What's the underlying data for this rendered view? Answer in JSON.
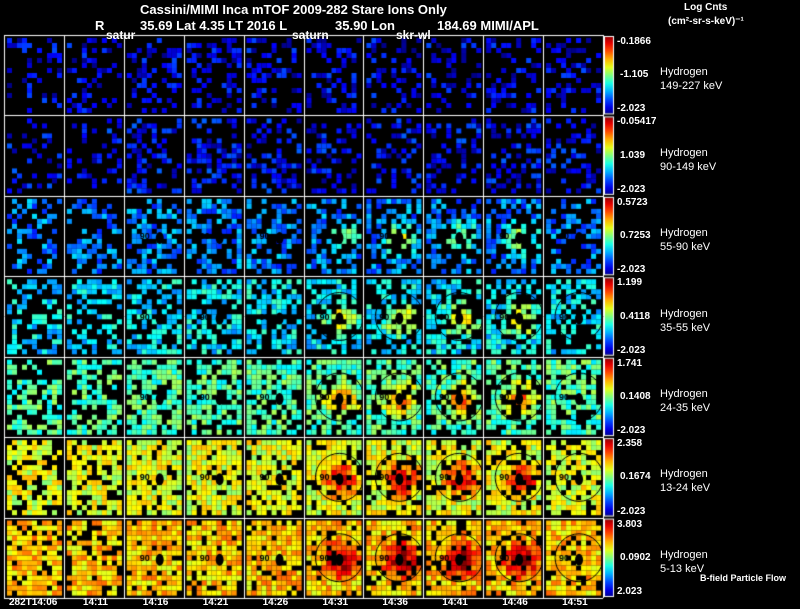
{
  "header": {
    "title": "Cassini/MIMI Inca mTOF  2009-282   Stare   Ions Only",
    "r_label": "R",
    "position": "35.69 Lat 4.35 LT 2016 L",
    "lon": "35.90 Lon",
    "lon_val": "184.69  MIMI/APL",
    "inset_labels": [
      "satur",
      "saturn",
      "skr-wl"
    ]
  },
  "colorbar_title": "Log Cnts",
  "colorbar_units": "(cm²-sr-s-keV)⁻¹",
  "footer_label": "B-field Particle Flow",
  "chart_data": {
    "type": "heatmap",
    "title": "Cassini/MIMI Inca mTOF  2009-282   Stare   Ions Only",
    "columns": [
      "282T14:06",
      "14:11",
      "14:16",
      "14:21",
      "14:26",
      "14:31",
      "14:36",
      "14:41",
      "14:46",
      "14:51"
    ],
    "rows": [
      {
        "species": "Hydrogen",
        "energy": "149-227 keV",
        "max": "-0.1866",
        "mid": "-1.105",
        "min": "-2.023",
        "level": 0.1
      },
      {
        "species": "Hydrogen",
        "energy": "90-149 keV",
        "max": "-0.05417",
        "mid": "1.039",
        "min": "-2.023",
        "level": 0.12
      },
      {
        "species": "Hydrogen",
        "energy": "55-90 keV",
        "max": "0.5723",
        "mid": "0.7253",
        "min": "-2.023",
        "level": 0.25
      },
      {
        "species": "Hydrogen",
        "energy": "35-55 keV",
        "max": "1.199",
        "mid": "0.4118",
        "min": "-2.023",
        "level": 0.35
      },
      {
        "species": "Hydrogen",
        "energy": "24-35 keV",
        "max": "1.741",
        "mid": "0.1408",
        "min": "-2.023",
        "level": 0.45
      },
      {
        "species": "Hydrogen",
        "energy": "13-24 keV",
        "max": "2.358",
        "mid": "0.1674",
        "min": "-2.023",
        "level": 0.6
      },
      {
        "species": "Hydrogen",
        "energy": "5-13 keV",
        "max": "3.803",
        "mid": "0.0902",
        "min": "2.023",
        "level": 0.68
      }
    ],
    "saturn_visible_columns": [
      2,
      3,
      4,
      5,
      6,
      7,
      8,
      9
    ],
    "colormap": "jet"
  }
}
